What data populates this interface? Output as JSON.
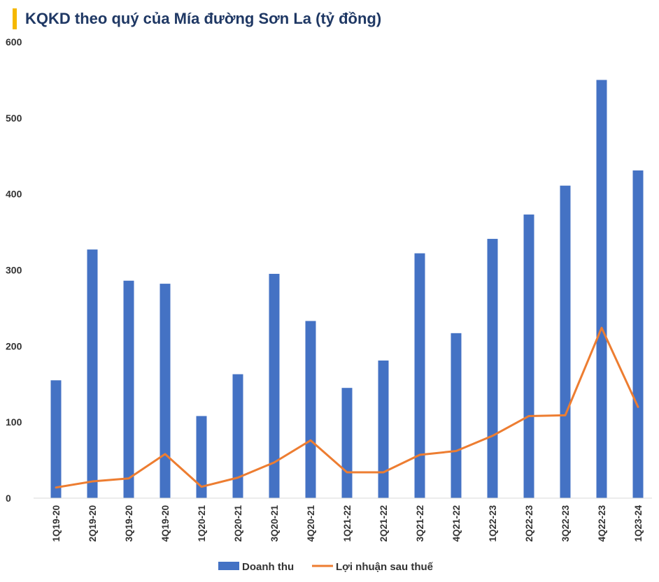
{
  "chart_data": {
    "type": "bar",
    "title": "KQKD theo quý của Mía đường Sơn La (tỷ đồng)",
    "categories": [
      "1Q19-20",
      "2Q19-20",
      "3Q19-20",
      "4Q19-20",
      "1Q20-21",
      "2Q20-21",
      "3Q20-21",
      "4Q20-21",
      "1Q21-22",
      "2Q21-22",
      "3Q21-22",
      "4Q21-22",
      "1Q22-23",
      "2Q22-23",
      "3Q22-23",
      "4Q22-23",
      "1Q23-24"
    ],
    "ylim": [
      0,
      600
    ],
    "yticks": [
      0,
      100,
      200,
      300,
      400,
      500,
      600
    ],
    "legend_position": "bottom",
    "series": [
      {
        "name": "Doanh thu",
        "type": "bar",
        "color": "#4472c4",
        "values": [
          155,
          327,
          286,
          282,
          108,
          163,
          295,
          233,
          145,
          181,
          322,
          217,
          341,
          373,
          411,
          550,
          431
        ]
      },
      {
        "name": "Lợi nhuận sau thuế",
        "type": "line",
        "color": "#ed7d31",
        "values": [
          14,
          22,
          26,
          58,
          15,
          27,
          47,
          76,
          34,
          34,
          57,
          62,
          82,
          108,
          109,
          224,
          120
        ]
      }
    ]
  }
}
